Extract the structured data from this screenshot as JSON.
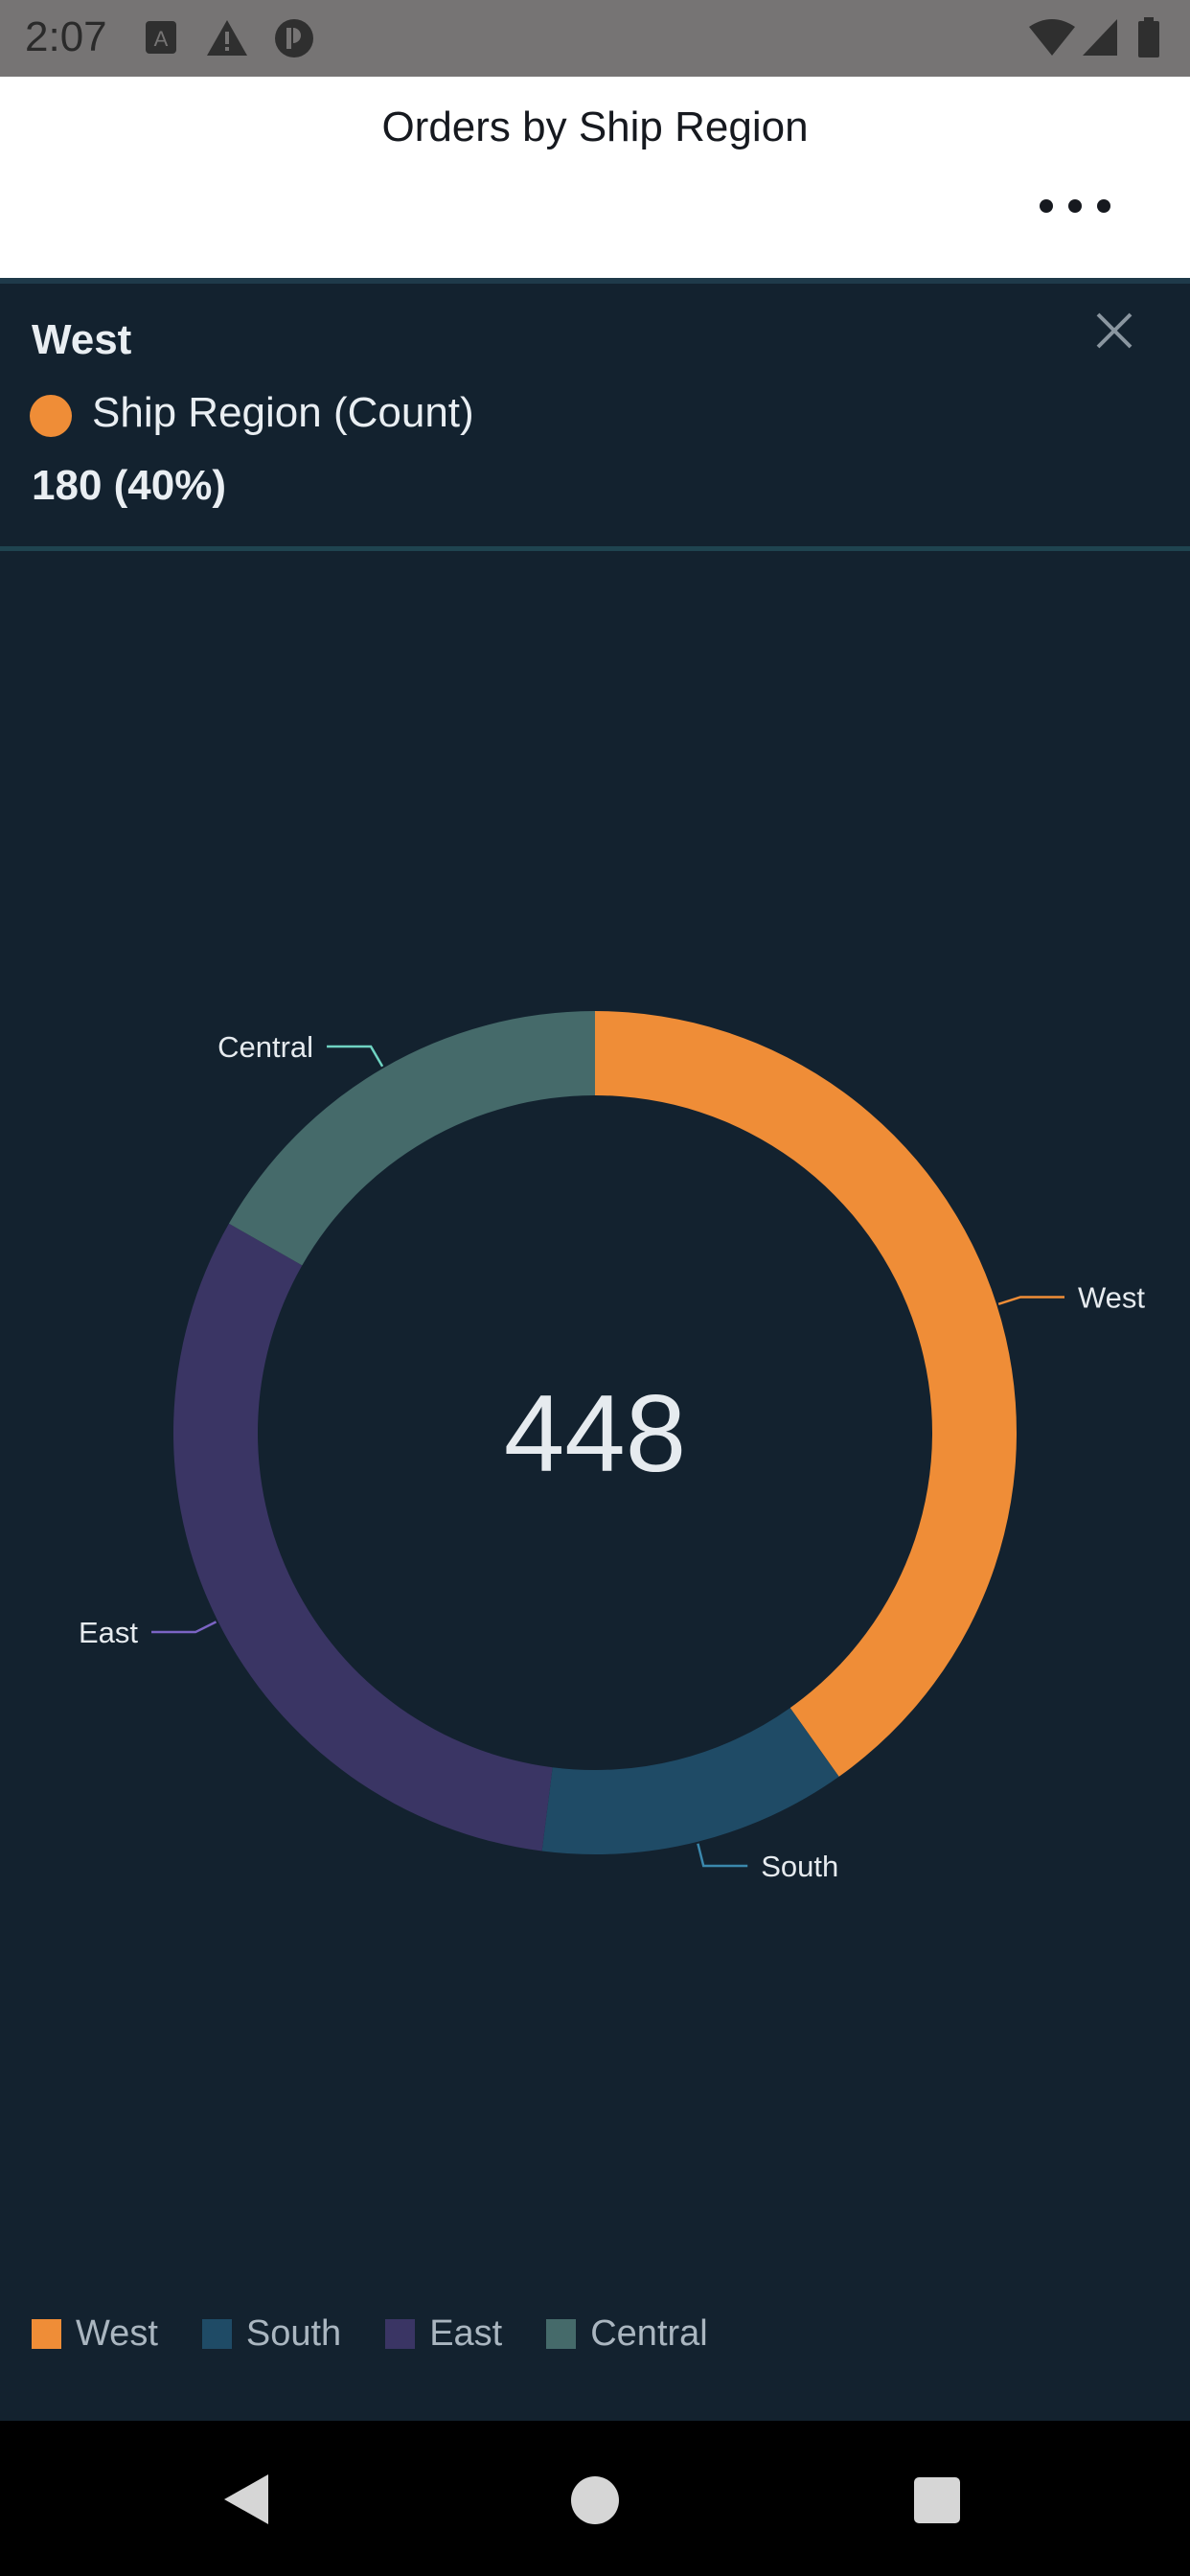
{
  "status_bar": {
    "time": "2:07",
    "icons": [
      "a-notification-icon",
      "warning-icon",
      "app-notification-icon",
      "wifi-icon",
      "cell-signal-icon",
      "battery-icon"
    ]
  },
  "header": {
    "title": "Orders by Ship Region",
    "more_icon": "more-horizontal-icon"
  },
  "tooltip": {
    "title": "West",
    "measure": "Ship Region (Count)",
    "value": "180 (40%)",
    "swatch_color": "#ef8d37"
  },
  "chart_data": {
    "type": "pie",
    "title": "Orders by Ship Region",
    "center_label": "448",
    "categories": [
      "West",
      "South",
      "East",
      "Central"
    ],
    "values": [
      180,
      53,
      140,
      75
    ],
    "colors": [
      "#ef8d37",
      "#1f4b66",
      "#3a3564",
      "#456a6a"
    ],
    "leader_colors": [
      "#ef8d37",
      "#3b88ad",
      "#7b64c4",
      "#6fd3c2"
    ],
    "legend_position": "bottom-left",
    "selected": "West"
  },
  "legend": {
    "items": [
      {
        "label": "West",
        "color": "#ef8d37"
      },
      {
        "label": "South",
        "color": "#1f4b66"
      },
      {
        "label": "East",
        "color": "#3a3564"
      },
      {
        "label": "Central",
        "color": "#456a6a"
      }
    ]
  },
  "nav_bar": {
    "back_icon": "back-triangle-icon",
    "home_icon": "home-circle-icon",
    "recents_icon": "recents-square-icon"
  }
}
